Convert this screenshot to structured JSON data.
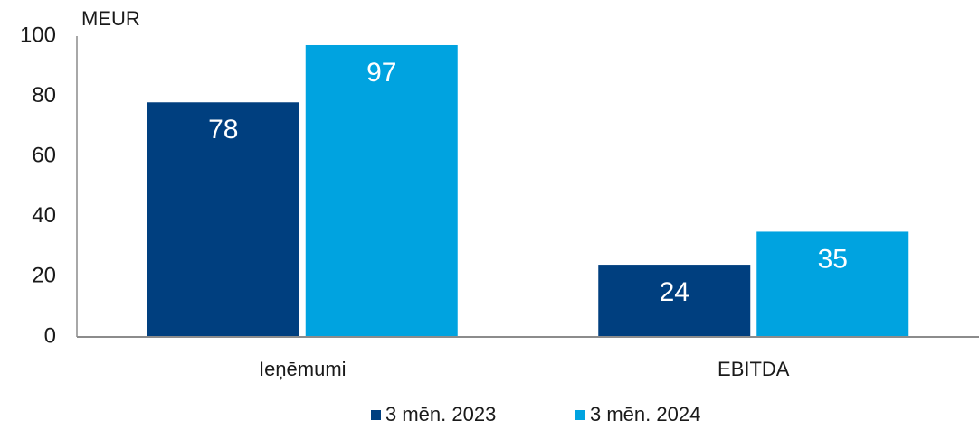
{
  "chart_data": {
    "type": "bar",
    "y_axis_label": "MEUR",
    "categories": [
      "Ieņēmumi",
      "EBITDA"
    ],
    "series": [
      {
        "name": "3 mēn. 2023",
        "color": "#003f7f",
        "values": [
          78,
          24
        ]
      },
      {
        "name": "3 mēn. 2024",
        "color": "#00a3e0",
        "values": [
          97,
          35
        ]
      }
    ],
    "ylim": [
      0,
      100
    ],
    "yticks": [
      0,
      20,
      40,
      60,
      80,
      100
    ],
    "grid": false,
    "legend": "bottom"
  }
}
